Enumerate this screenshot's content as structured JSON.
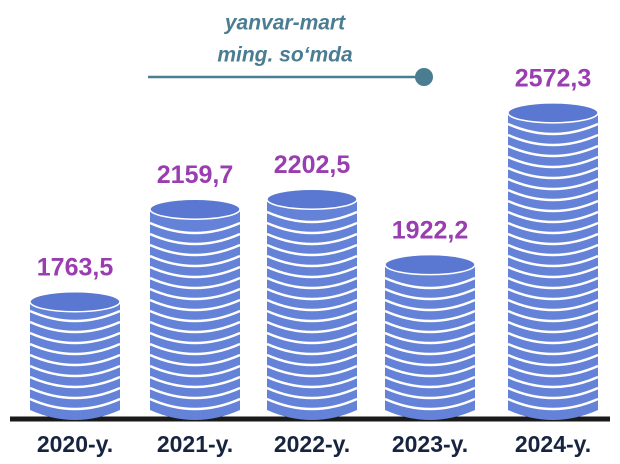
{
  "chart_data": {
    "type": "coin-stack",
    "title": "yanvar-mart",
    "subtitle": "ming. so‘mda",
    "categories": [
      "2020-y.",
      "2021-y.",
      "2022-y.",
      "2023-y.",
      "2024-y."
    ],
    "values": [
      1763.5,
      2159.7,
      2202.5,
      1922.2,
      2572.3
    ],
    "value_labels": [
      "1763,5",
      "2159,7",
      "2202,5",
      "1922,2",
      "2572,3"
    ],
    "color": "#6482d8",
    "ylim": [
      1300,
      2700
    ]
  }
}
